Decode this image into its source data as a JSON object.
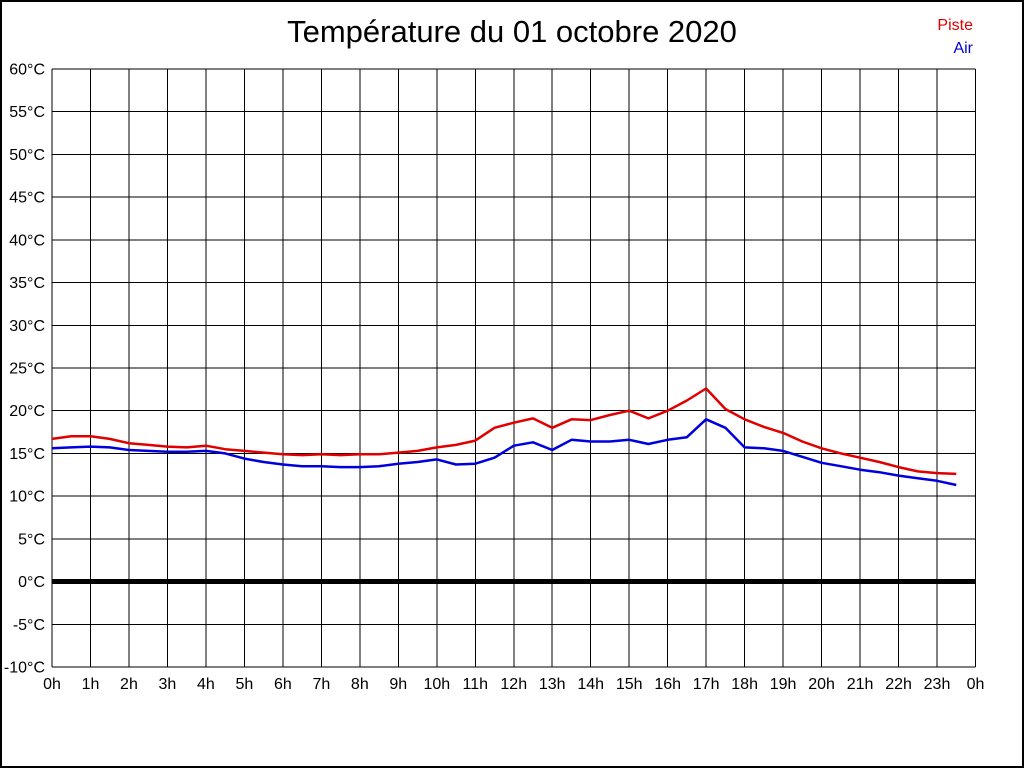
{
  "page": {
    "title": "Température du 01 octobre 2020",
    "background": "#ffffff",
    "border_color": "#000000"
  },
  "legend": {
    "items": [
      {
        "label": "Piste",
        "color": "#e00000"
      },
      {
        "label": "Air",
        "color": "#0000dd"
      }
    ]
  },
  "chart_data": {
    "type": "line",
    "title": "Température du 01 octobre 2020",
    "xlabel": "",
    "ylabel": "",
    "xlim": [
      0,
      24
    ],
    "ylim": [
      -10,
      60
    ],
    "grid": true,
    "grid_color": "#000000",
    "axis_color": "#000000",
    "zero_line": {
      "value": 0,
      "color": "#000000",
      "width": 5
    },
    "legend_position": "top-right",
    "x_unit": "hour of day",
    "y_unit": "°C",
    "x": [
      0,
      0.5,
      1,
      1.5,
      2,
      2.5,
      3,
      3.5,
      4,
      4.5,
      5,
      5.5,
      6,
      6.5,
      7,
      7.5,
      8,
      8.5,
      9,
      9.5,
      10,
      10.5,
      11,
      11.5,
      12,
      12.5,
      13,
      13.5,
      14,
      14.5,
      15,
      15.5,
      16,
      16.5,
      17,
      17.5,
      18,
      18.5,
      19,
      19.5,
      20,
      20.5,
      21,
      21.5,
      22,
      22.5,
      23,
      23.5
    ],
    "series": [
      {
        "name": "Piste",
        "color": "#e00000",
        "values": [
          16.7,
          17.0,
          17.0,
          16.7,
          16.2,
          16.0,
          15.8,
          15.7,
          15.9,
          15.5,
          15.3,
          15.1,
          14.9,
          14.8,
          14.9,
          14.8,
          14.9,
          14.9,
          15.1,
          15.3,
          15.7,
          16.0,
          16.5,
          18.0,
          18.6,
          19.1,
          18.0,
          19.0,
          18.9,
          19.5,
          20.0,
          19.1,
          20.0,
          21.2,
          22.6,
          20.2,
          19.0,
          18.1,
          17.4,
          16.4,
          15.6,
          15.0,
          14.5,
          14.0,
          13.4,
          12.9,
          12.7,
          12.6
        ]
      },
      {
        "name": "Air",
        "color": "#0000dd",
        "values": [
          15.6,
          15.7,
          15.8,
          15.7,
          15.4,
          15.3,
          15.2,
          15.2,
          15.3,
          15.0,
          14.4,
          14.0,
          13.7,
          13.5,
          13.5,
          13.4,
          13.4,
          13.5,
          13.8,
          14.0,
          14.3,
          13.7,
          13.8,
          14.5,
          15.9,
          16.3,
          15.4,
          16.6,
          16.4,
          16.4,
          16.6,
          16.1,
          16.6,
          16.9,
          19.0,
          18.0,
          15.7,
          15.6,
          15.3,
          14.6,
          13.9,
          13.5,
          13.1,
          12.8,
          12.4,
          12.1,
          11.8,
          11.3
        ]
      }
    ],
    "xticks": {
      "values": [
        0,
        1,
        2,
        3,
        4,
        5,
        6,
        7,
        8,
        9,
        10,
        11,
        12,
        13,
        14,
        15,
        16,
        17,
        18,
        19,
        20,
        21,
        22,
        23,
        24
      ],
      "labels": [
        "0h",
        "1h",
        "2h",
        "3h",
        "4h",
        "5h",
        "6h",
        "7h",
        "8h",
        "9h",
        "10h",
        "11h",
        "12h",
        "13h",
        "14h",
        "15h",
        "16h",
        "17h",
        "18h",
        "19h",
        "20h",
        "21h",
        "22h",
        "23h",
        "0h"
      ]
    },
    "yticks": {
      "values": [
        60,
        55,
        50,
        45,
        40,
        35,
        30,
        25,
        20,
        15,
        10,
        5,
        0,
        -5,
        -10
      ],
      "labels": [
        "60°C",
        "55°C",
        "50°C",
        "45°C",
        "40°C",
        "35°C",
        "30°C",
        "25°C",
        "20°C",
        "15°C",
        "10°C",
        "5°C",
        "0°C",
        "-5°C",
        "-10°C"
      ]
    }
  }
}
